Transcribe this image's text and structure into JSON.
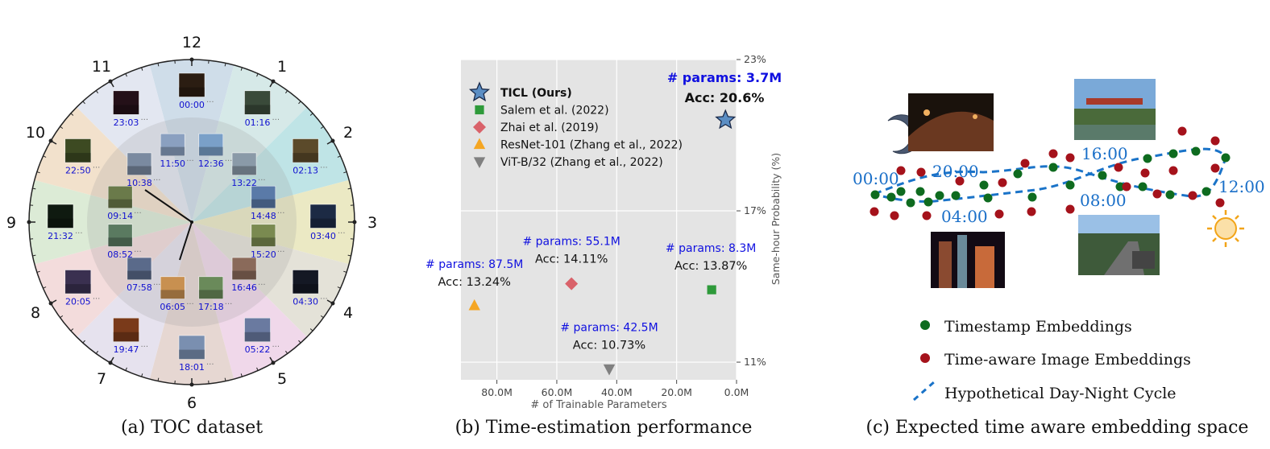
{
  "captions": {
    "a": "(a) TOC dataset",
    "b": "(b) Time-estimation performance",
    "c": "(c) Expected time aware embedding space"
  },
  "clock": {
    "hours": [
      "12",
      "1",
      "2",
      "3",
      "4",
      "5",
      "6",
      "7",
      "8",
      "9",
      "10",
      "11"
    ],
    "sector_colors": [
      "#cfdde9",
      "#d6e9e8",
      "#bfe4e6",
      "#ebe9c4",
      "#e4e2d8",
      "#f0d8ea",
      "#e6d7d2",
      "#e6e2ee",
      "#f3dcdc",
      "#dcebd6",
      "#f2e1cc",
      "#e3e7f1"
    ],
    "photos_outer": [
      {
        "time": "00:00",
        "tone": "#2b1d12"
      },
      {
        "time": "01:16",
        "tone": "#3a4a3a"
      },
      {
        "time": "02:13",
        "tone": "#5b4a2a"
      },
      {
        "time": "03:40",
        "tone": "#1c2a44"
      },
      {
        "time": "04:30",
        "tone": "#141824"
      },
      {
        "time": "05:22",
        "tone": "#6a7aa0"
      },
      {
        "time": "18:01",
        "tone": "#7a8fb0"
      },
      {
        "time": "19:47",
        "tone": "#7a3a1a"
      },
      {
        "time": "20:05",
        "tone": "#3a3050"
      },
      {
        "time": "21:32",
        "tone": "#0f1a10"
      },
      {
        "time": "22:50",
        "tone": "#3d4a22"
      },
      {
        "time": "23:03",
        "tone": "#241018"
      }
    ],
    "photos_inner": [
      {
        "time": "12:36",
        "tone": "#7aa0c8"
      },
      {
        "time": "13:22",
        "tone": "#8a9aa8"
      },
      {
        "time": "14:48",
        "tone": "#5a7aa8"
      },
      {
        "time": "15:20",
        "tone": "#7a8a50"
      },
      {
        "time": "16:46",
        "tone": "#8a6a5a"
      },
      {
        "time": "17:18",
        "tone": "#6a8a5a"
      },
      {
        "time": "06:05",
        "tone": "#c89050"
      },
      {
        "time": "07:58",
        "tone": "#5a6a8a"
      },
      {
        "time": "08:52",
        "tone": "#5a7a60"
      },
      {
        "time": "09:14",
        "tone": "#6a7a4a"
      },
      {
        "time": "10:38",
        "tone": "#7a8aa0"
      },
      {
        "time": "11:50",
        "tone": "#8aa0c0"
      }
    ]
  },
  "chart_data": {
    "type": "scatter",
    "xlabel": "# of Trainable Parameters",
    "ylabel": "Same-hour Probability (%)",
    "x_unit": "M",
    "xlim": [
      92,
      0
    ],
    "ylim": [
      10.3,
      23
    ],
    "x_ticks": [
      80,
      60,
      40,
      20,
      0
    ],
    "x_tick_labels": [
      "80.0M",
      "60.0M",
      "40.0M",
      "20.0M",
      "0.0M"
    ],
    "y_ticks": [
      11,
      17,
      23
    ],
    "y_tick_labels": [
      "11%",
      "17%",
      "23%"
    ],
    "grid": true,
    "legend_position": "top-left",
    "series": [
      {
        "name": "TICL (Ours)",
        "marker": "star",
        "color": "#5b8ec4",
        "x": 3.7,
        "y": 20.6,
        "bold": true,
        "params_label": "# params: 3.7M",
        "acc_label": "Acc: 20.6%"
      },
      {
        "name": "Salem et al. (2022)",
        "marker": "square",
        "color": "#2e9a3a",
        "x": 8.3,
        "y": 13.87,
        "bold": false,
        "params_label": "# params: 8.3M",
        "acc_label": "Acc: 13.87%"
      },
      {
        "name": "Zhai et al. (2019)",
        "marker": "diamond",
        "color": "#d9626a",
        "x": 55.1,
        "y": 14.11,
        "bold": false,
        "params_label": "# params: 55.1M",
        "acc_label": "Acc: 14.11%"
      },
      {
        "name": "ResNet-101 (Zhang et al., 2022)",
        "marker": "triangle-up",
        "color": "#f5a623",
        "x": 87.5,
        "y": 13.24,
        "bold": false,
        "params_label": "# params: 87.5M",
        "acc_label": "Acc: 13.24%"
      },
      {
        "name": "ViT-B/32 (Zhang et al., 2022)",
        "marker": "triangle-down",
        "color": "#808080",
        "x": 42.5,
        "y": 10.73,
        "bold": false,
        "params_label": "# params: 42.5M",
        "acc_label": "Acc: 10.73%"
      }
    ]
  },
  "embedding": {
    "times": [
      "00:00",
      "20:00",
      "04:00",
      "16:00",
      "08:00",
      "12:00"
    ],
    "legend": {
      "timestamp": "Timestamp Embeddings",
      "image": "Time-aware Image Embeddings",
      "cycle": "Hypothetical Day-Night Cycle"
    },
    "colors": {
      "timestamp": "#0e6b1f",
      "image": "#a5121b",
      "cycle": "#1a73c8",
      "time_text": "#1a6fc8"
    }
  }
}
